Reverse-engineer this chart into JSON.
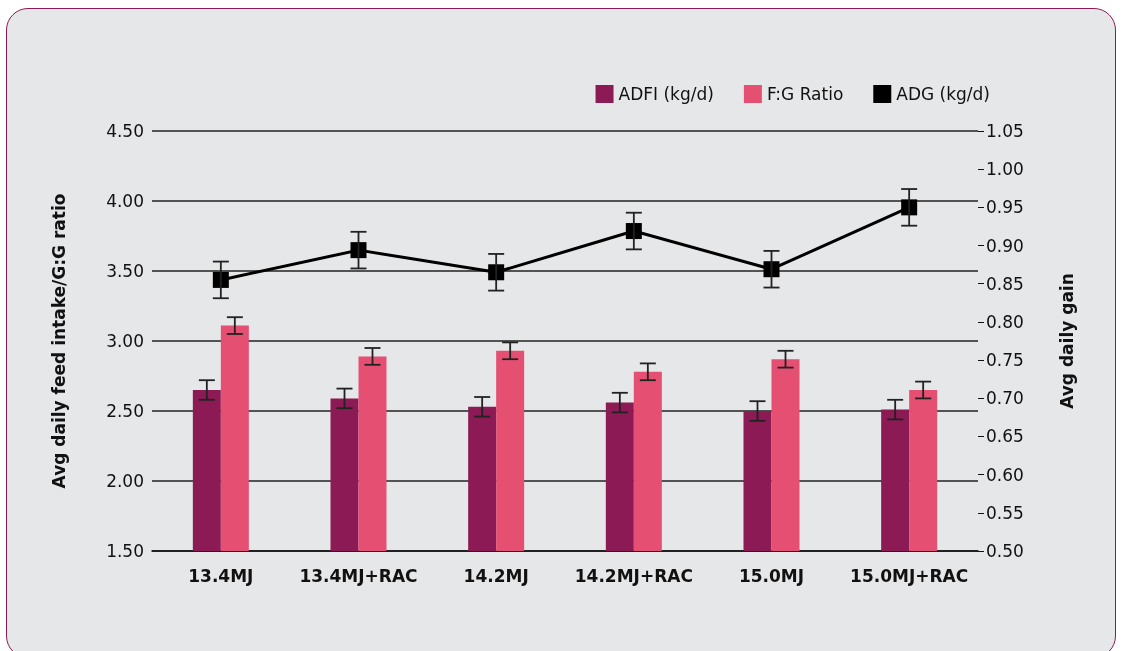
{
  "chart_data": {
    "type": "bar",
    "ylabel": "Avg daily feed intake/G:G ratio",
    "y2label": "Avg daily gain",
    "categories": [
      "13.4MJ",
      "13.4MJ+RAC",
      "14.2MJ",
      "14.2MJ+RAC",
      "15.0MJ",
      "15.0MJ+RAC"
    ],
    "series": [
      {
        "name": "ADFI (kg/d)",
        "color": "#8b1a55",
        "values": [
          2.65,
          2.59,
          2.53,
          2.56,
          2.5,
          2.51
        ],
        "errors": [
          0.07,
          0.07,
          0.07,
          0.07,
          0.07,
          0.07
        ]
      },
      {
        "name": "F:G Ratio",
        "color": "#e44f72",
        "values": [
          3.11,
          2.89,
          2.93,
          2.78,
          2.87,
          2.65
        ],
        "errors": [
          0.06,
          0.06,
          0.06,
          0.06,
          0.06,
          0.06
        ]
      },
      {
        "name": "ADG (kg/d)",
        "type": "line",
        "axis": "y2",
        "color": "#000000",
        "marker": "square",
        "line_style": "solid",
        "values": [
          0.855,
          0.894,
          0.865,
          0.919,
          0.869,
          0.95
        ],
        "errors": [
          0.024,
          0.024,
          0.024,
          0.024,
          0.024,
          0.024
        ]
      }
    ],
    "ylim": [
      1.5,
      4.5
    ],
    "yticks": [
      {
        "value": 1.5,
        "label": "1.50"
      },
      {
        "value": 2,
        "label": "2.00"
      },
      {
        "value": 2.5,
        "label": "2.50"
      },
      {
        "value": 3,
        "label": "3.00"
      },
      {
        "value": 3.5,
        "label": "3.50"
      },
      {
        "value": 4,
        "label": "4.00"
      },
      {
        "value": 4.5,
        "label": "4.50"
      }
    ],
    "y2lim": [
      0.5,
      1.05
    ],
    "y2ticks": [
      {
        "value": 0.5,
        "label": "0.50"
      },
      {
        "value": 0.55,
        "label": "0.55"
      },
      {
        "value": 0.6,
        "label": "0.60"
      },
      {
        "value": 0.65,
        "label": "0.65"
      },
      {
        "value": 0.7,
        "label": "0.70"
      },
      {
        "value": 0.75,
        "label": "0.75"
      },
      {
        "value": 0.8,
        "label": "0.80"
      },
      {
        "value": 0.85,
        "label": "0.85"
      },
      {
        "value": 0.9,
        "label": "0.90"
      },
      {
        "value": 0.95,
        "label": "0.95"
      },
      {
        "value": 1,
        "label": "1.00"
      },
      {
        "value": 1.05,
        "label": "1.05"
      }
    ],
    "grid": "y",
    "legend": "top right"
  }
}
